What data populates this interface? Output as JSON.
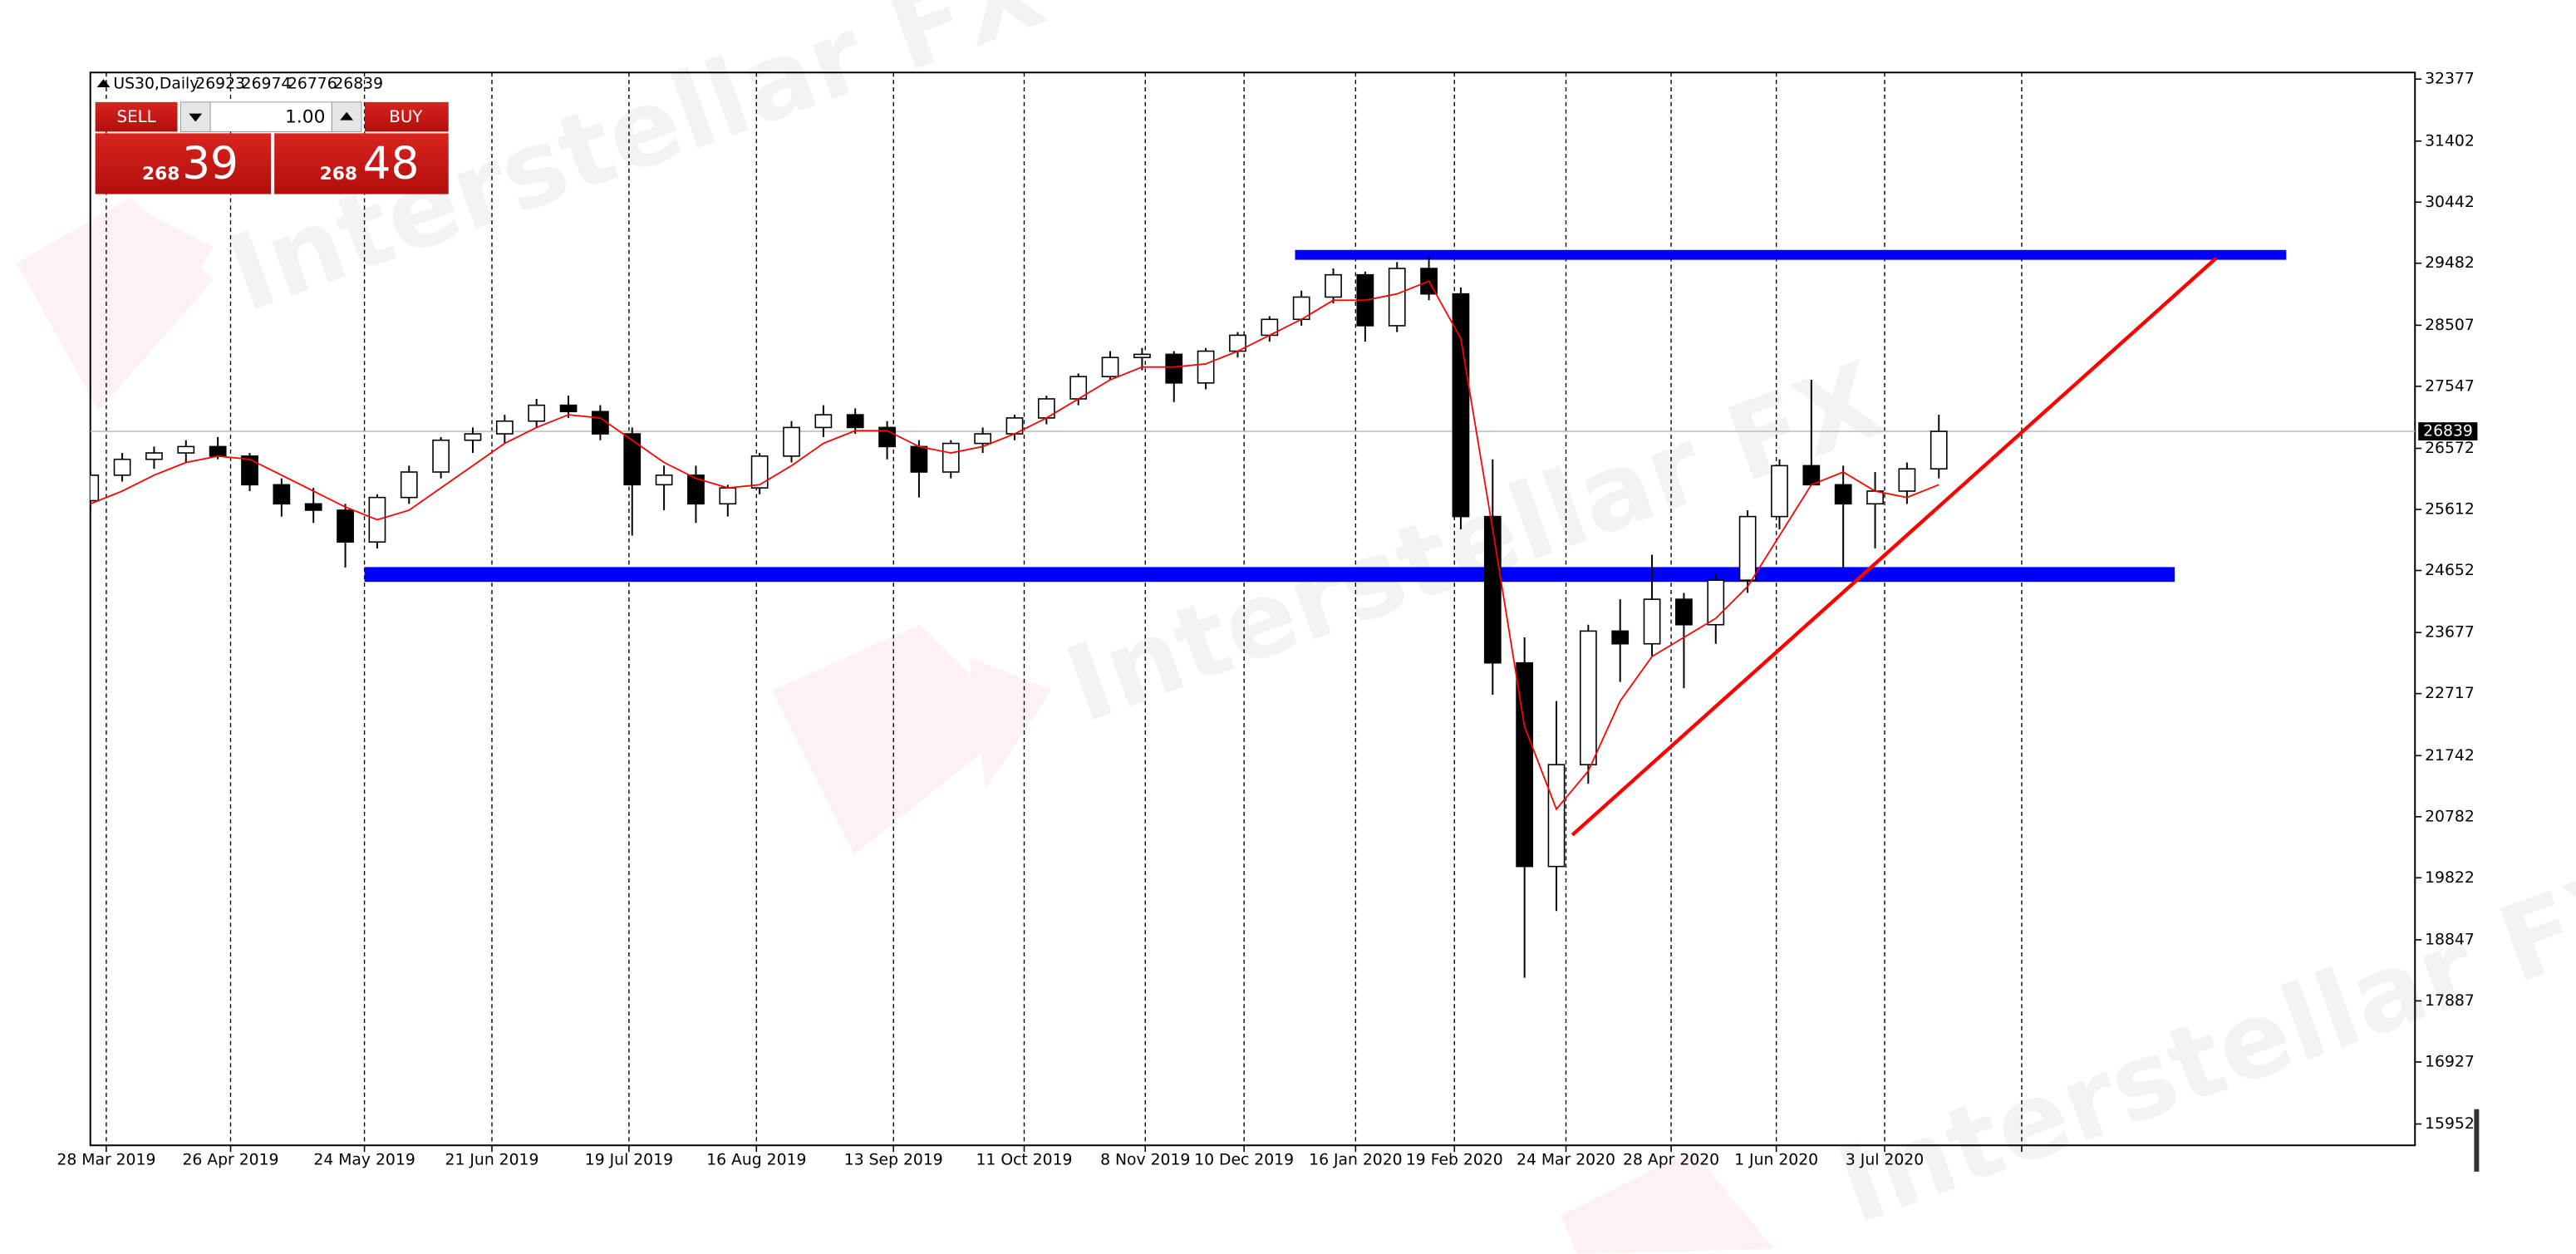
{
  "chart_data": {
    "type": "candlestick",
    "title": "US30,Daily",
    "header_values": [
      26923,
      26974,
      26776,
      26839
    ],
    "watermark": "Interstellar FX",
    "trade_panel": {
      "sell": "SELL",
      "buy": "BUY",
      "volume": "1.00",
      "bid_prefix": "268",
      "bid_suffix": "39",
      "ask_prefix": "268",
      "ask_suffix": "48"
    },
    "candle_color": "#000000",
    "open": [
      25750,
      26150,
      26400,
      26500,
      26600,
      26450,
      26000,
      25700,
      25600,
      25100,
      25800,
      26200,
      26700,
      26800,
      27000,
      27250,
      27150,
      26800,
      26000,
      26150,
      25700,
      25950,
      26450,
      26900,
      27100,
      26900,
      26600,
      26200,
      26650,
      26800,
      27050,
      27350,
      27700,
      28000,
      28050,
      27600,
      28100,
      28350,
      28600,
      28950,
      29300,
      28500,
      29400,
      29000,
      25500,
      23200,
      20000,
      21600,
      23700,
      23500,
      24200,
      23800,
      24500,
      25500,
      26300,
      26000,
      25700,
      25900,
      26250
    ],
    "high": [
      26200,
      26500,
      26600,
      26700,
      26750,
      26500,
      26100,
      25950,
      25700,
      25850,
      26300,
      26750,
      26900,
      27100,
      27350,
      27400,
      27250,
      26900,
      26300,
      26300,
      26000,
      26500,
      27000,
      27250,
      27200,
      27000,
      26700,
      26700,
      26900,
      27100,
      27400,
      27750,
      28100,
      28150,
      28100,
      28150,
      28400,
      28650,
      29050,
      29400,
      29350,
      29500,
      29600,
      29100,
      26400,
      23600,
      22600,
      23800,
      24200,
      24900,
      24300,
      24600,
      25600,
      26400,
      27650,
      26300,
      26200,
      26350,
      27100
    ],
    "low": [
      25600,
      26050,
      26250,
      26350,
      26400,
      25900,
      25500,
      25400,
      24700,
      25000,
      25700,
      26100,
      26500,
      26650,
      26900,
      27050,
      26700,
      25200,
      25600,
      25400,
      25500,
      25850,
      26350,
      26750,
      26800,
      26400,
      25800,
      26100,
      26500,
      26700,
      26950,
      27250,
      27650,
      27800,
      27300,
      27500,
      28000,
      28250,
      28500,
      28850,
      28250,
      28400,
      28900,
      25300,
      22700,
      18250,
      19300,
      21300,
      22900,
      23300,
      22800,
      23500,
      24300,
      25300,
      26100,
      24700,
      25000,
      25700,
      26100
    ],
    "close": [
      26150,
      26400,
      26500,
      26600,
      26450,
      26000,
      25700,
      25600,
      25100,
      25800,
      26200,
      26700,
      26800,
      27000,
      27250,
      27150,
      26800,
      26000,
      26150,
      25700,
      25950,
      26450,
      26900,
      27100,
      26900,
      26600,
      26200,
      26650,
      26800,
      27050,
      27350,
      27700,
      28000,
      28050,
      27600,
      28100,
      28350,
      28600,
      28950,
      29300,
      28500,
      29400,
      29000,
      25500,
      23200,
      20000,
      21600,
      23700,
      23500,
      24200,
      23800,
      24500,
      25500,
      26300,
      26000,
      25700,
      25900,
      26250,
      26839
    ],
    "ma": {
      "color": "#ff0000",
      "values": [
        25700,
        25900,
        26150,
        26350,
        26450,
        26400,
        26150,
        25900,
        25650,
        25450,
        25600,
        25950,
        26300,
        26650,
        26900,
        27100,
        27050,
        26700,
        26350,
        26100,
        25950,
        26000,
        26300,
        26650,
        26850,
        26850,
        26600,
        26500,
        26600,
        26800,
        27050,
        27350,
        27650,
        27850,
        27850,
        27900,
        28100,
        28350,
        28600,
        28900,
        28900,
        29000,
        29200,
        28300,
        25300,
        22200,
        20900,
        21500,
        22600,
        23300,
        23600,
        23900,
        24400,
        25200,
        26000,
        26200,
        25900,
        25800,
        26000
      ]
    },
    "levels": [
      {
        "color": "#0000ff",
        "x": [
          37.8,
          68.9
        ],
        "y": [
          29536,
          29691
        ]
      },
      {
        "color": "#0000ff",
        "x": [
          8.6,
          65.4
        ],
        "y": [
          24473,
          24706
        ]
      }
    ],
    "trendline": {
      "color": "#ff0000",
      "x": [
        46.5,
        66.7
      ],
      "y": [
        20495,
        29562
      ]
    },
    "last_price": 26839,
    "xlim": [
      0,
      72.94
    ],
    "ylim": [
      15616,
      32480
    ],
    "grid": true,
    "xticks": [
      {
        "value": 0.5,
        "label": "28 Mar 2019"
      },
      {
        "value": 4.4,
        "label": "26 Apr 2019"
      },
      {
        "value": 8.6,
        "label": "24 May 2019"
      },
      {
        "value": 12.6,
        "label": "21 Jun 2019"
      },
      {
        "value": 16.9,
        "label": "19 Jul 2019"
      },
      {
        "value": 20.9,
        "label": "16 Aug 2019"
      },
      {
        "value": 25.2,
        "label": "13 Sep 2019"
      },
      {
        "value": 29.3,
        "label": "11 Oct 2019"
      },
      {
        "value": 33.1,
        "label": "8 Nov 2019"
      },
      {
        "value": 36.2,
        "label": "10 Dec 2019"
      },
      {
        "value": 39.7,
        "label": "16 Jan 2020"
      },
      {
        "value": 42.8,
        "label": "19 Feb 2020"
      },
      {
        "value": 46.3,
        "label": "24 Mar 2020"
      },
      {
        "value": 49.6,
        "label": "28 Apr 2020"
      },
      {
        "value": 52.9,
        "label": "1 Jun 2020"
      },
      {
        "value": 56.3,
        "label": "3 Jul 2020"
      },
      {
        "value": 60.6,
        "label": null
      }
    ],
    "yticks": [
      32377,
      31402,
      30442,
      29482,
      28507,
      27547,
      26572,
      25612,
      24652,
      23677,
      22717,
      21742,
      20782,
      19822,
      18847,
      17887,
      16927,
      15952
    ]
  }
}
